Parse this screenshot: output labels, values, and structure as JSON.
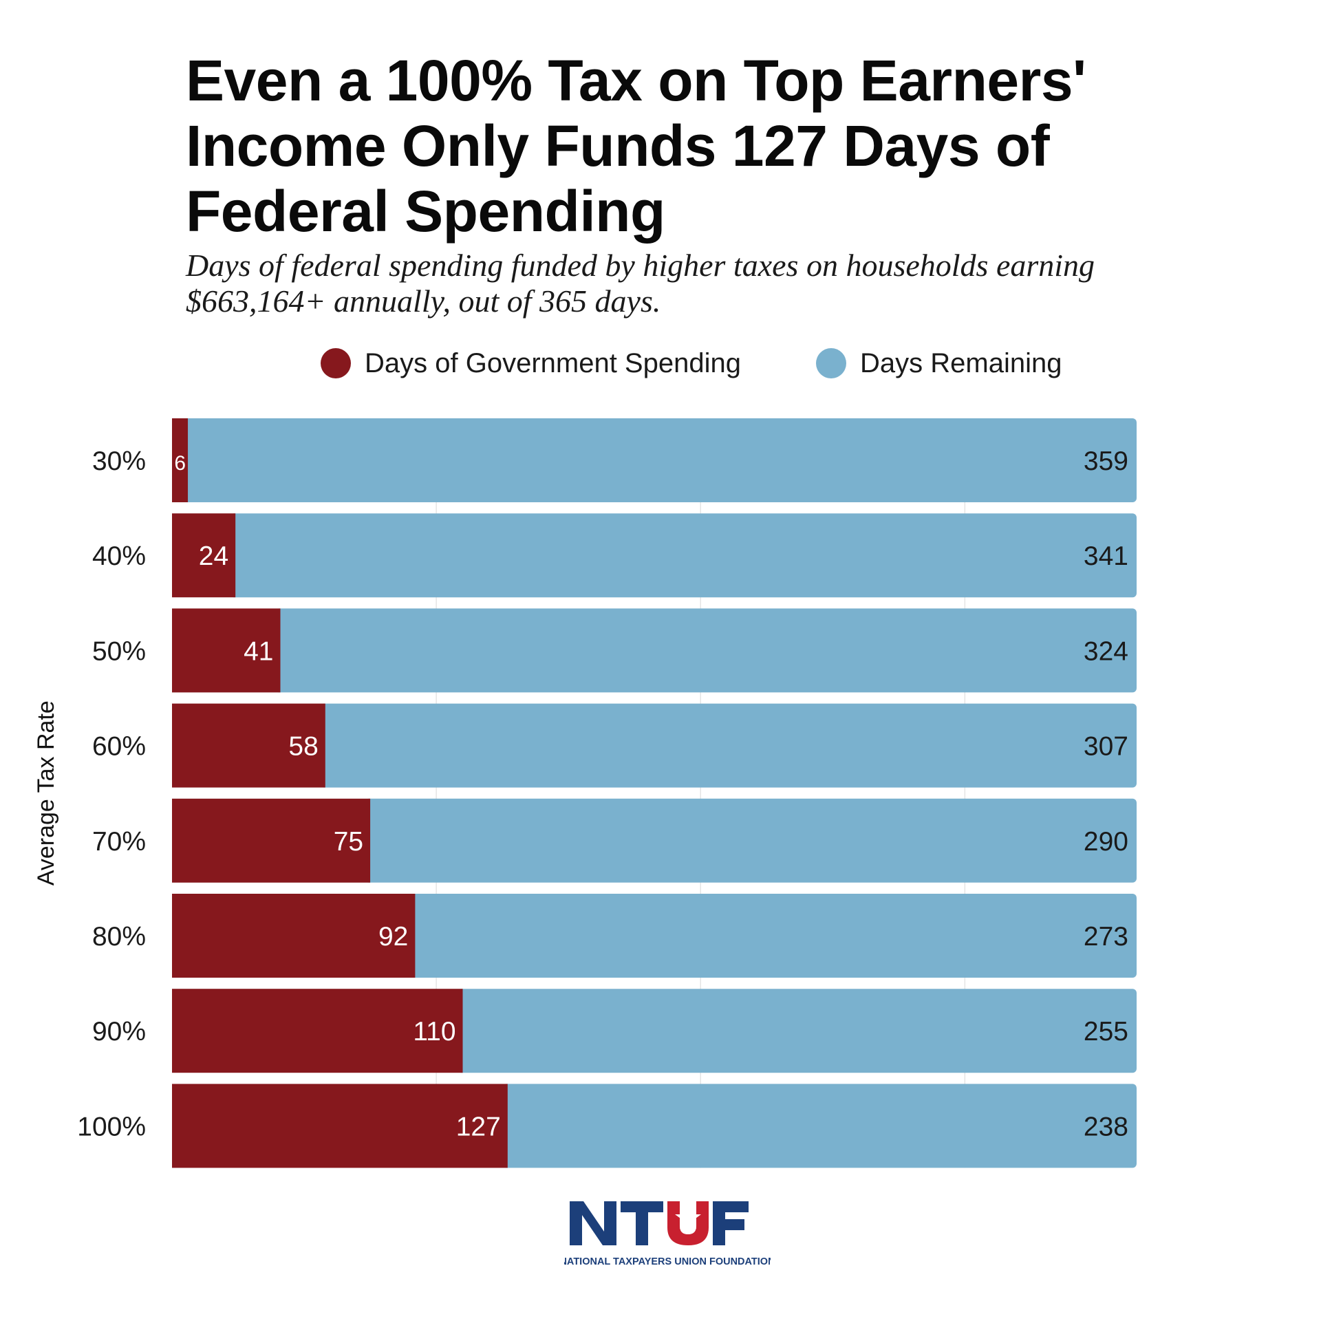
{
  "title": "Even a 100% Tax on Top Earners' Income Only Funds 127 Days of Federal Spending",
  "subtitle": "Days of federal spending funded by higher taxes on households earning $663,164+ annually, out of 365 days.",
  "legend": [
    {
      "label": "Days of Government Spending",
      "color": "#86181D"
    },
    {
      "label": "Days Remaining",
      "color": "#7AB1CE"
    }
  ],
  "chart_data": {
    "type": "bar",
    "orientation": "horizontal",
    "stacked": true,
    "ylabel": "Average Tax Rate",
    "xlim": [
      0,
      365
    ],
    "grid": true,
    "legend_position": "top",
    "categories": [
      "30%",
      "40%",
      "50%",
      "60%",
      "70%",
      "80%",
      "90%",
      "100%"
    ],
    "series": [
      {
        "name": "Days of Government Spending",
        "color": "#86181D",
        "values": [
          6,
          24,
          41,
          58,
          75,
          92,
          110,
          127
        ]
      },
      {
        "name": "Days Remaining",
        "color": "#7AB1CE",
        "values": [
          359,
          341,
          324,
          307,
          290,
          273,
          255,
          238
        ]
      }
    ]
  },
  "logo": {
    "mark_letters": "NTUF",
    "organization": "NATIONAL TAXPAYERS UNION FOUNDATION",
    "colors": {
      "blue": "#1C3F7A",
      "red": "#C8202F"
    }
  }
}
